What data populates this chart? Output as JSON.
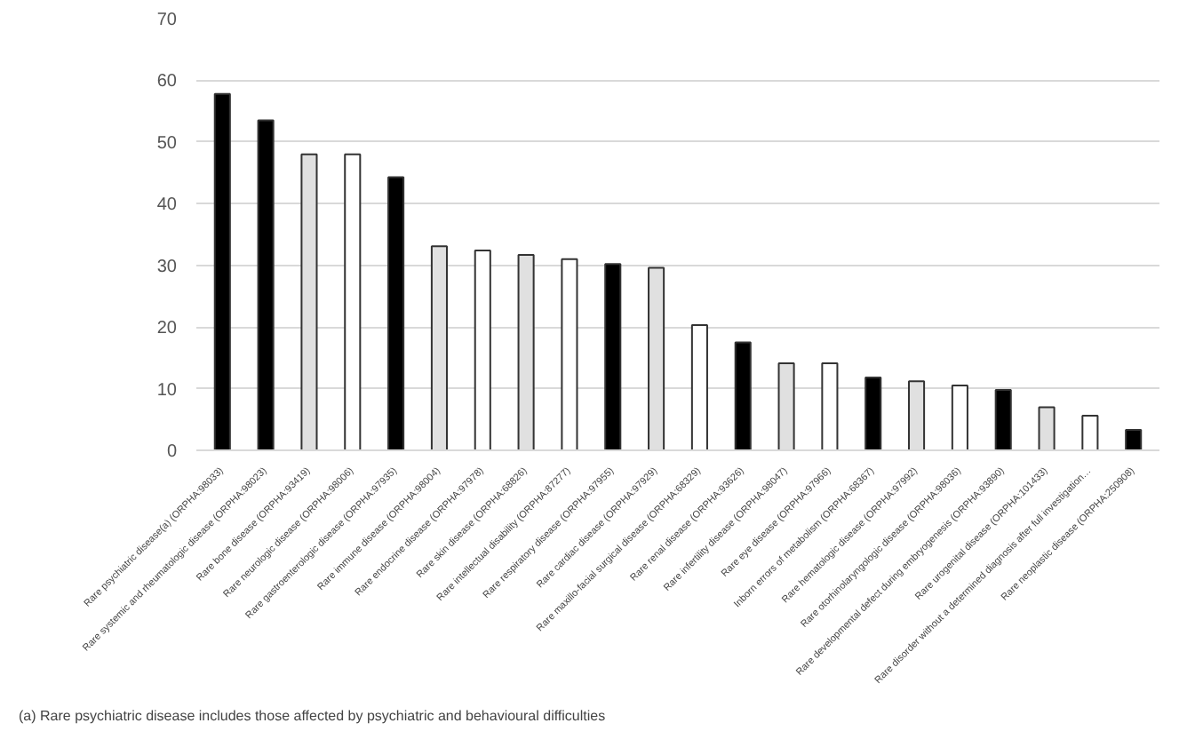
{
  "chart_data": {
    "type": "bar",
    "categories": [
      "Rare psychiatric disease(a) (ORPHA:98033)",
      "Rare systemic and rheumatologic disease (ORPHA:98023)",
      "Rare bone disease (ORPHA:93419)",
      "Rare neurologic disease (ORPHA:98006)",
      "Rare gastroenterologic disease (ORPHA:97935)",
      "Rare immune disease (ORPHA:98004)",
      "Rare endocrine disease (ORPHA:97978)",
      "Rare skin disease (ORPHA:68826)",
      "Rare intellectual disability (ORPHA:87277)",
      "Rare respiratory disease (ORPHA:97955)",
      "Rare cardiac disease (ORPHA:97929)",
      "Rare maxillo-facial surgical disease (ORPHA:68329)",
      "Rare renal disease (ORPHA:93626)",
      "Rare infertility disease (ORPHA:98047)",
      "Rare eye disease (ORPHA:97966)",
      "Inborn errors of metabolism (ORPHA:68367)",
      "Rare hematologic disease (ORPHA:97992)",
      "Rare otorhinolaryngologic disease (ORPHA:98036)",
      "Rare developmental defect during embryogenesis (ORPHA:93890)",
      "Rare urogenital disease (ORPHA:101433)",
      "Rare disorder without a determined diagnosis after full investigation…",
      "Rare neoplastic disease (ORPHA:250908)"
    ],
    "values": [
      57.8,
      53.5,
      48,
      48,
      44.3,
      33.1,
      32.4,
      31.7,
      31,
      30.2,
      29.6,
      20.3,
      17.5,
      14.1,
      14.1,
      11.8,
      11.2,
      10.5,
      9.8,
      7,
      5.6,
      3.3
    ],
    "colors": [
      "#000000",
      "#000000",
      "#e0e0e0",
      "#ffffff",
      "#000000",
      "#e0e0e0",
      "#ffffff",
      "#e0e0e0",
      "#ffffff",
      "#000000",
      "#e0e0e0",
      "#ffffff",
      "#000000",
      "#e0e0e0",
      "#ffffff",
      "#000000",
      "#e0e0e0",
      "#ffffff",
      "#000000",
      "#e0e0e0",
      "#ffffff",
      "#000000"
    ],
    "ylim": [
      0,
      70
    ],
    "yticks": [
      0,
      10,
      20,
      30,
      40,
      50,
      60,
      70
    ],
    "grid": "y",
    "annotations": [
      "(a)     Rare psychiatric disease includes those affected by psychiatric and behavioural difficulties"
    ]
  }
}
